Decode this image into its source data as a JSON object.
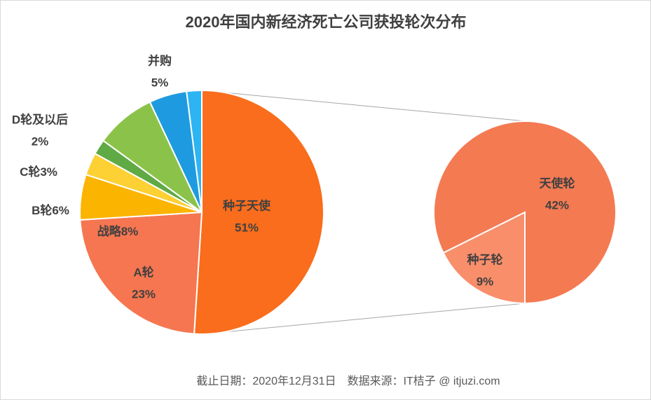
{
  "chart_data": {
    "type": "pie-of-pie",
    "title": "2020年国内新经济死亡公司获投轮次分布",
    "categories": [
      "种子天使",
      "A轮",
      "B轮",
      "C轮",
      "D轮及以后",
      "战略",
      "并购",
      null
    ],
    "values": [
      51,
      23,
      6,
      3,
      2,
      8,
      5,
      2
    ],
    "value_labels": [
      "51%",
      "23%",
      "6%",
      "3%",
      "2%",
      "8%",
      "5%",
      null
    ],
    "colors": [
      "#f96d1c",
      "#f57650",
      "#fbb400",
      "#fdd034",
      "#5faa45",
      "#8bc34a",
      "#1e9be0",
      "#2db4f2"
    ],
    "breakout": {
      "categories": [
        "种子轮",
        "天使轮"
      ],
      "values": [
        9,
        42
      ],
      "value_labels": [
        "9%",
        "42%"
      ],
      "colors": [
        "#f98e6b",
        "#f47a52"
      ]
    },
    "footer": "截止日期：2020年12月31日　数据来源：IT桔子 @ itjuzi.com"
  }
}
